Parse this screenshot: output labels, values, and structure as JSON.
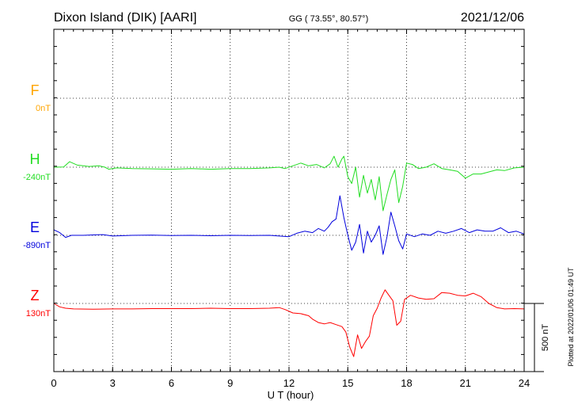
{
  "header": {
    "station": "Dixon Island (DIK)  [AARI]",
    "coords": "GG ( 73.55°,  80.57°)",
    "date": "2021/12/06"
  },
  "scale_label": "500 nT",
  "plotted_note": "Plotted at 2022/01/06 01:49 UT",
  "chart_data": {
    "type": "line",
    "title": "Dixon Island (DIK)  [AARI]",
    "xlabel": "U T (hour)",
    "xlim": [
      0,
      24
    ],
    "xticks": [
      0,
      3,
      6,
      9,
      12,
      15,
      18,
      21,
      24
    ],
    "grid": true,
    "scale_bar_nT": 500,
    "series": [
      {
        "name": "F",
        "baseline_label": "0nT",
        "color": "#ffa500",
        "baseline_nT": 0,
        "points": []
      },
      {
        "name": "H",
        "baseline_label": "-240nT",
        "color": "#22dd22",
        "baseline_nT": -240,
        "points": [
          [
            0,
            -240
          ],
          [
            0.5,
            -238
          ],
          [
            0.8,
            -200
          ],
          [
            1.2,
            -225
          ],
          [
            1.8,
            -235
          ],
          [
            2.3,
            -230
          ],
          [
            2.6,
            -240
          ],
          [
            2.8,
            -255
          ],
          [
            3.2,
            -245
          ],
          [
            4,
            -250
          ],
          [
            5,
            -252
          ],
          [
            6,
            -255
          ],
          [
            7,
            -250
          ],
          [
            8,
            -255
          ],
          [
            9,
            -250
          ],
          [
            10,
            -250
          ],
          [
            11,
            -245
          ],
          [
            11.5,
            -240
          ],
          [
            11.8,
            -250
          ],
          [
            12.2,
            -230
          ],
          [
            12.6,
            -210
          ],
          [
            13,
            -230
          ],
          [
            13.4,
            -220
          ],
          [
            13.8,
            -245
          ],
          [
            14.1,
            -215
          ],
          [
            14.3,
            -160
          ],
          [
            14.5,
            -240
          ],
          [
            14.7,
            -180
          ],
          [
            14.8,
            -160
          ],
          [
            15,
            -310
          ],
          [
            15.2,
            -360
          ],
          [
            15.4,
            -240
          ],
          [
            15.6,
            -460
          ],
          [
            15.8,
            -300
          ],
          [
            16,
            -430
          ],
          [
            16.2,
            -330
          ],
          [
            16.4,
            -480
          ],
          [
            16.6,
            -310
          ],
          [
            16.8,
            -560
          ],
          [
            17,
            -440
          ],
          [
            17.2,
            -330
          ],
          [
            17.4,
            -260
          ],
          [
            17.6,
            -500
          ],
          [
            17.8,
            -380
          ],
          [
            18,
            -210
          ],
          [
            18.3,
            -220
          ],
          [
            18.6,
            -250
          ],
          [
            19,
            -240
          ],
          [
            19.4,
            -215
          ],
          [
            19.8,
            -250
          ],
          [
            20.2,
            -260
          ],
          [
            20.6,
            -270
          ],
          [
            21,
            -320
          ],
          [
            21.4,
            -290
          ],
          [
            21.8,
            -290
          ],
          [
            22.2,
            -275
          ],
          [
            22.6,
            -260
          ],
          [
            23,
            -265
          ],
          [
            23.5,
            -245
          ],
          [
            24,
            -240
          ]
        ]
      },
      {
        "name": "E",
        "baseline_label": "-890nT",
        "color": "#0000dd",
        "baseline_nT": -890,
        "points": [
          [
            0,
            -850
          ],
          [
            0.3,
            -870
          ],
          [
            0.6,
            -905
          ],
          [
            0.9,
            -890
          ],
          [
            1.5,
            -890
          ],
          [
            2.5,
            -885
          ],
          [
            3,
            -895
          ],
          [
            4,
            -890
          ],
          [
            5,
            -888
          ],
          [
            6,
            -892
          ],
          [
            7,
            -890
          ],
          [
            8,
            -893
          ],
          [
            9,
            -890
          ],
          [
            10,
            -892
          ],
          [
            11,
            -890
          ],
          [
            11.5,
            -895
          ],
          [
            12,
            -900
          ],
          [
            12.4,
            -875
          ],
          [
            12.8,
            -860
          ],
          [
            13.2,
            -870
          ],
          [
            13.5,
            -840
          ],
          [
            13.8,
            -860
          ],
          [
            14,
            -830
          ],
          [
            14.2,
            -790
          ],
          [
            14.4,
            -770
          ],
          [
            14.6,
            -600
          ],
          [
            14.8,
            -760
          ],
          [
            15,
            -890
          ],
          [
            15.2,
            -1000
          ],
          [
            15.4,
            -940
          ],
          [
            15.6,
            -810
          ],
          [
            15.8,
            -1020
          ],
          [
            16,
            -860
          ],
          [
            16.2,
            -940
          ],
          [
            16.4,
            -890
          ],
          [
            16.6,
            -820
          ],
          [
            16.8,
            -1030
          ],
          [
            17,
            -900
          ],
          [
            17.2,
            -720
          ],
          [
            17.4,
            -820
          ],
          [
            17.6,
            -930
          ],
          [
            17.8,
            -990
          ],
          [
            18,
            -880
          ],
          [
            18.4,
            -900
          ],
          [
            18.8,
            -880
          ],
          [
            19.2,
            -890
          ],
          [
            19.6,
            -860
          ],
          [
            20,
            -875
          ],
          [
            20.4,
            -860
          ],
          [
            20.8,
            -840
          ],
          [
            21.2,
            -870
          ],
          [
            21.6,
            -850
          ],
          [
            22,
            -860
          ],
          [
            22.4,
            -860
          ],
          [
            22.8,
            -835
          ],
          [
            23.2,
            -870
          ],
          [
            23.6,
            -860
          ],
          [
            24,
            -880
          ]
        ]
      },
      {
        "name": "Z",
        "baseline_label": "130nT",
        "color": "#ff0000",
        "baseline_nT": 130,
        "points": [
          [
            0,
            130
          ],
          [
            0.3,
            105
          ],
          [
            0.6,
            95
          ],
          [
            1,
            90
          ],
          [
            2,
            88
          ],
          [
            3,
            90
          ],
          [
            4,
            90
          ],
          [
            5,
            92
          ],
          [
            6,
            92
          ],
          [
            7,
            92
          ],
          [
            8,
            95
          ],
          [
            9,
            92
          ],
          [
            10,
            92
          ],
          [
            11,
            95
          ],
          [
            11.5,
            100
          ],
          [
            11.8,
            85
          ],
          [
            12.2,
            60
          ],
          [
            12.6,
            55
          ],
          [
            13,
            40
          ],
          [
            13.2,
            15
          ],
          [
            13.5,
            -10
          ],
          [
            13.8,
            -20
          ],
          [
            14.1,
            -10
          ],
          [
            14.4,
            -25
          ],
          [
            14.7,
            -40
          ],
          [
            14.9,
            -80
          ],
          [
            15.1,
            -190
          ],
          [
            15.3,
            -260
          ],
          [
            15.5,
            -100
          ],
          [
            15.7,
            -200
          ],
          [
            15.9,
            -150
          ],
          [
            16.1,
            -110
          ],
          [
            16.3,
            40
          ],
          [
            16.5,
            95
          ],
          [
            16.7,
            170
          ],
          [
            16.9,
            230
          ],
          [
            17.1,
            190
          ],
          [
            17.3,
            150
          ],
          [
            17.5,
            -30
          ],
          [
            17.7,
            0
          ],
          [
            17.9,
            160
          ],
          [
            18.2,
            190
          ],
          [
            18.6,
            170
          ],
          [
            19,
            160
          ],
          [
            19.4,
            165
          ],
          [
            19.8,
            210
          ],
          [
            20.2,
            205
          ],
          [
            20.6,
            190
          ],
          [
            21,
            185
          ],
          [
            21.4,
            205
          ],
          [
            21.8,
            180
          ],
          [
            22.2,
            130
          ],
          [
            22.6,
            100
          ],
          [
            23,
            90
          ],
          [
            23.5,
            92
          ],
          [
            24,
            90
          ]
        ]
      }
    ]
  }
}
